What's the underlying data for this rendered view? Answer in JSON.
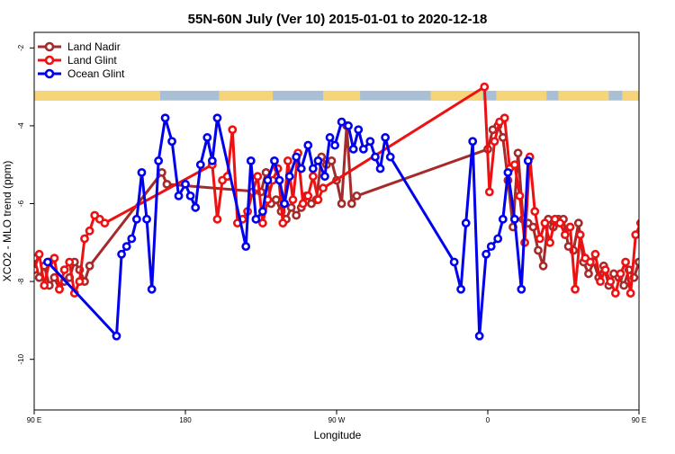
{
  "chart_data": {
    "type": "line",
    "title": "55N-60N July (Ver 10)   2015-01-01 to 2020-12-18",
    "xlabel": "Longitude",
    "ylabel": "XCO2 - MLO trend (ppm)",
    "xlim": [
      90,
      450
    ],
    "ylim": [
      -11.3,
      -1.6
    ],
    "xticks": [
      {
        "value": 90,
        "label": "90 E"
      },
      {
        "value": 180,
        "label": "180"
      },
      {
        "value": 270,
        "label": "90 W"
      },
      {
        "value": 360,
        "label": "0"
      },
      {
        "value": 450,
        "label": "90 E"
      },
      {
        "value": 540,
        "label": "180"
      }
    ],
    "yticks": [
      {
        "value": -2,
        "label": "-2"
      },
      {
        "value": -4,
        "label": "-4"
      },
      {
        "value": -6,
        "label": "-6"
      },
      {
        "value": -8,
        "label": "-8"
      },
      {
        "value": -10,
        "label": "-10"
      }
    ],
    "legend": {
      "position": "top-left"
    },
    "land_band": {
      "y_from": -3.35,
      "y_to": -3.1,
      "ocean_color": "#a8bfd6",
      "land_color": "#f5d47a"
    },
    "series": [
      {
        "name": "Land Nadir",
        "color": "#a52a2a",
        "points": [
          [
            90,
            -7.4
          ],
          [
            93,
            -7.9
          ],
          [
            96,
            -7.6
          ],
          [
            99,
            -8.1
          ],
          [
            102,
            -7.9
          ],
          [
            105,
            -8.2
          ],
          [
            108,
            -8.0
          ],
          [
            111,
            -7.9
          ],
          [
            114,
            -7.5
          ],
          [
            117,
            -7.7
          ],
          [
            120,
            -8.0
          ],
          [
            123,
            -7.6
          ],
          [
            166,
            -5.2
          ],
          [
            169,
            -5.5
          ],
          [
            225,
            -5.7
          ],
          [
            228,
            -5.2
          ],
          [
            231,
            -6.0
          ],
          [
            234,
            -5.9
          ],
          [
            237,
            -6.2
          ],
          [
            240,
            -6.4
          ],
          [
            243,
            -6.1
          ],
          [
            246,
            -6.3
          ],
          [
            249,
            -6.1
          ],
          [
            252,
            -5.8
          ],
          [
            255,
            -6.0
          ],
          [
            258,
            -5.9
          ],
          [
            261,
            -4.8
          ],
          [
            264,
            -5.0
          ],
          [
            267,
            -4.9
          ],
          [
            270,
            -5.4
          ],
          [
            273,
            -6.0
          ],
          [
            276,
            -4.0
          ],
          [
            279,
            -6.0
          ],
          [
            282,
            -5.8
          ],
          [
            360,
            -4.6
          ],
          [
            363,
            -4.1
          ],
          [
            366,
            -4.0
          ],
          [
            369,
            -4.3
          ],
          [
            372,
            -5.4
          ],
          [
            375,
            -6.6
          ],
          [
            378,
            -4.7
          ],
          [
            381,
            -6.4
          ],
          [
            384,
            -6.5
          ],
          [
            387,
            -6.6
          ],
          [
            390,
            -7.2
          ],
          [
            393,
            -7.6
          ],
          [
            396,
            -6.4
          ],
          [
            399,
            -6.6
          ],
          [
            402,
            -6.4
          ],
          [
            405,
            -6.4
          ],
          [
            408,
            -7.1
          ],
          [
            411,
            -7.2
          ],
          [
            414,
            -6.5
          ],
          [
            417,
            -7.5
          ],
          [
            420,
            -7.8
          ],
          [
            423,
            -7.5
          ],
          [
            426,
            -7.9
          ],
          [
            429,
            -7.6
          ],
          [
            432,
            -8.1
          ],
          [
            435,
            -7.8
          ],
          [
            438,
            -7.9
          ],
          [
            441,
            -8.1
          ],
          [
            444,
            -7.7
          ],
          [
            447,
            -7.9
          ],
          [
            450,
            -7.5
          ],
          [
            453,
            -7.7
          ],
          [
            456,
            -7.7
          ],
          [
            459,
            -8.0
          ],
          [
            462,
            -7.5
          ],
          [
            465,
            -7.6
          ]
        ]
      },
      {
        "name": "Land Glint",
        "color": "#ee1111",
        "points": [
          [
            90,
            -7.7
          ],
          [
            93,
            -7.3
          ],
          [
            96,
            -8.1
          ],
          [
            99,
            -7.5
          ],
          [
            102,
            -7.4
          ],
          [
            105,
            -8.2
          ],
          [
            108,
            -7.7
          ],
          [
            111,
            -7.5
          ],
          [
            114,
            -8.3
          ],
          [
            117,
            -8.0
          ],
          [
            120,
            -6.9
          ],
          [
            123,
            -6.7
          ],
          [
            126,
            -6.3
          ],
          [
            129,
            -6.4
          ],
          [
            132,
            -6.5
          ],
          [
            196,
            -5.0
          ],
          [
            199,
            -6.4
          ],
          [
            202,
            -5.4
          ],
          [
            205,
            -5.3
          ],
          [
            208,
            -4.1
          ],
          [
            211,
            -6.5
          ],
          [
            214,
            -6.4
          ],
          [
            217,
            -6.2
          ],
          [
            220,
            -5.7
          ],
          [
            223,
            -5.3
          ],
          [
            226,
            -6.5
          ],
          [
            229,
            -5.9
          ],
          [
            232,
            -5.4
          ],
          [
            235,
            -5.1
          ],
          [
            238,
            -6.5
          ],
          [
            241,
            -4.9
          ],
          [
            244,
            -5.9
          ],
          [
            247,
            -4.7
          ],
          [
            250,
            -6.0
          ],
          [
            253,
            -5.8
          ],
          [
            256,
            -5.3
          ],
          [
            259,
            -5.9
          ],
          [
            262,
            -5.6
          ],
          [
            358,
            -3.0
          ],
          [
            361,
            -5.7
          ],
          [
            364,
            -4.4
          ],
          [
            367,
            -3.9
          ],
          [
            370,
            -3.8
          ],
          [
            373,
            -5.1
          ],
          [
            376,
            -5.0
          ],
          [
            379,
            -5.8
          ],
          [
            382,
            -7.0
          ],
          [
            385,
            -4.8
          ],
          [
            388,
            -6.2
          ],
          [
            391,
            -6.9
          ],
          [
            394,
            -6.5
          ],
          [
            397,
            -7.0
          ],
          [
            400,
            -6.4
          ],
          [
            403,
            -6.5
          ],
          [
            406,
            -6.8
          ],
          [
            409,
            -6.6
          ],
          [
            412,
            -8.2
          ],
          [
            415,
            -6.8
          ],
          [
            418,
            -7.4
          ],
          [
            421,
            -7.5
          ],
          [
            424,
            -7.3
          ],
          [
            427,
            -8.0
          ],
          [
            430,
            -7.7
          ],
          [
            433,
            -8.0
          ],
          [
            436,
            -8.3
          ],
          [
            439,
            -7.8
          ],
          [
            442,
            -7.5
          ],
          [
            445,
            -8.3
          ],
          [
            448,
            -6.8
          ],
          [
            451,
            -6.5
          ],
          [
            454,
            -6.2
          ],
          [
            457,
            -6.5
          ],
          [
            460,
            -6.4
          ],
          [
            463,
            -7.4
          ]
        ]
      },
      {
        "name": "Ocean Glint",
        "color": "#0000ee",
        "points": [
          [
            98,
            -7.5
          ],
          [
            139,
            -9.4
          ],
          [
            142,
            -7.3
          ],
          [
            145,
            -7.1
          ],
          [
            148,
            -6.9
          ],
          [
            151,
            -6.4
          ],
          [
            154,
            -5.2
          ],
          [
            157,
            -6.4
          ],
          [
            160,
            -8.2
          ],
          [
            164,
            -4.9
          ],
          [
            168,
            -3.8
          ],
          [
            172,
            -4.4
          ],
          [
            176,
            -5.8
          ],
          [
            180,
            -5.5
          ],
          [
            183,
            -5.8
          ],
          [
            186,
            -6.1
          ],
          [
            189,
            -5.0
          ],
          [
            193,
            -4.3
          ],
          [
            196,
            -4.9
          ],
          [
            199,
            -3.8
          ],
          [
            216,
            -7.1
          ],
          [
            219,
            -4.9
          ],
          [
            222,
            -6.4
          ],
          [
            226,
            -6.2
          ],
          [
            229,
            -5.4
          ],
          [
            233,
            -4.9
          ],
          [
            236,
            -5.4
          ],
          [
            239,
            -6.0
          ],
          [
            242,
            -5.3
          ],
          [
            246,
            -4.8
          ],
          [
            249,
            -5.1
          ],
          [
            253,
            -4.5
          ],
          [
            256,
            -5.1
          ],
          [
            259,
            -4.9
          ],
          [
            263,
            -5.3
          ],
          [
            266,
            -4.3
          ],
          [
            269,
            -4.5
          ],
          [
            273,
            -3.9
          ],
          [
            277,
            -4.0
          ],
          [
            280,
            -4.6
          ],
          [
            283,
            -4.1
          ],
          [
            286,
            -4.6
          ],
          [
            290,
            -4.4
          ],
          [
            293,
            -4.8
          ],
          [
            296,
            -5.1
          ],
          [
            299,
            -4.3
          ],
          [
            302,
            -4.8
          ],
          [
            340,
            -7.5
          ],
          [
            344,
            -8.2
          ],
          [
            347,
            -6.5
          ],
          [
            351,
            -4.4
          ],
          [
            355,
            -9.4
          ],
          [
            359,
            -7.3
          ],
          [
            362,
            -7.1
          ],
          [
            366,
            -6.9
          ],
          [
            369,
            -6.4
          ],
          [
            372,
            -5.2
          ],
          [
            376,
            -6.4
          ],
          [
            380,
            -8.2
          ],
          [
            384,
            -4.9
          ]
        ]
      }
    ]
  }
}
